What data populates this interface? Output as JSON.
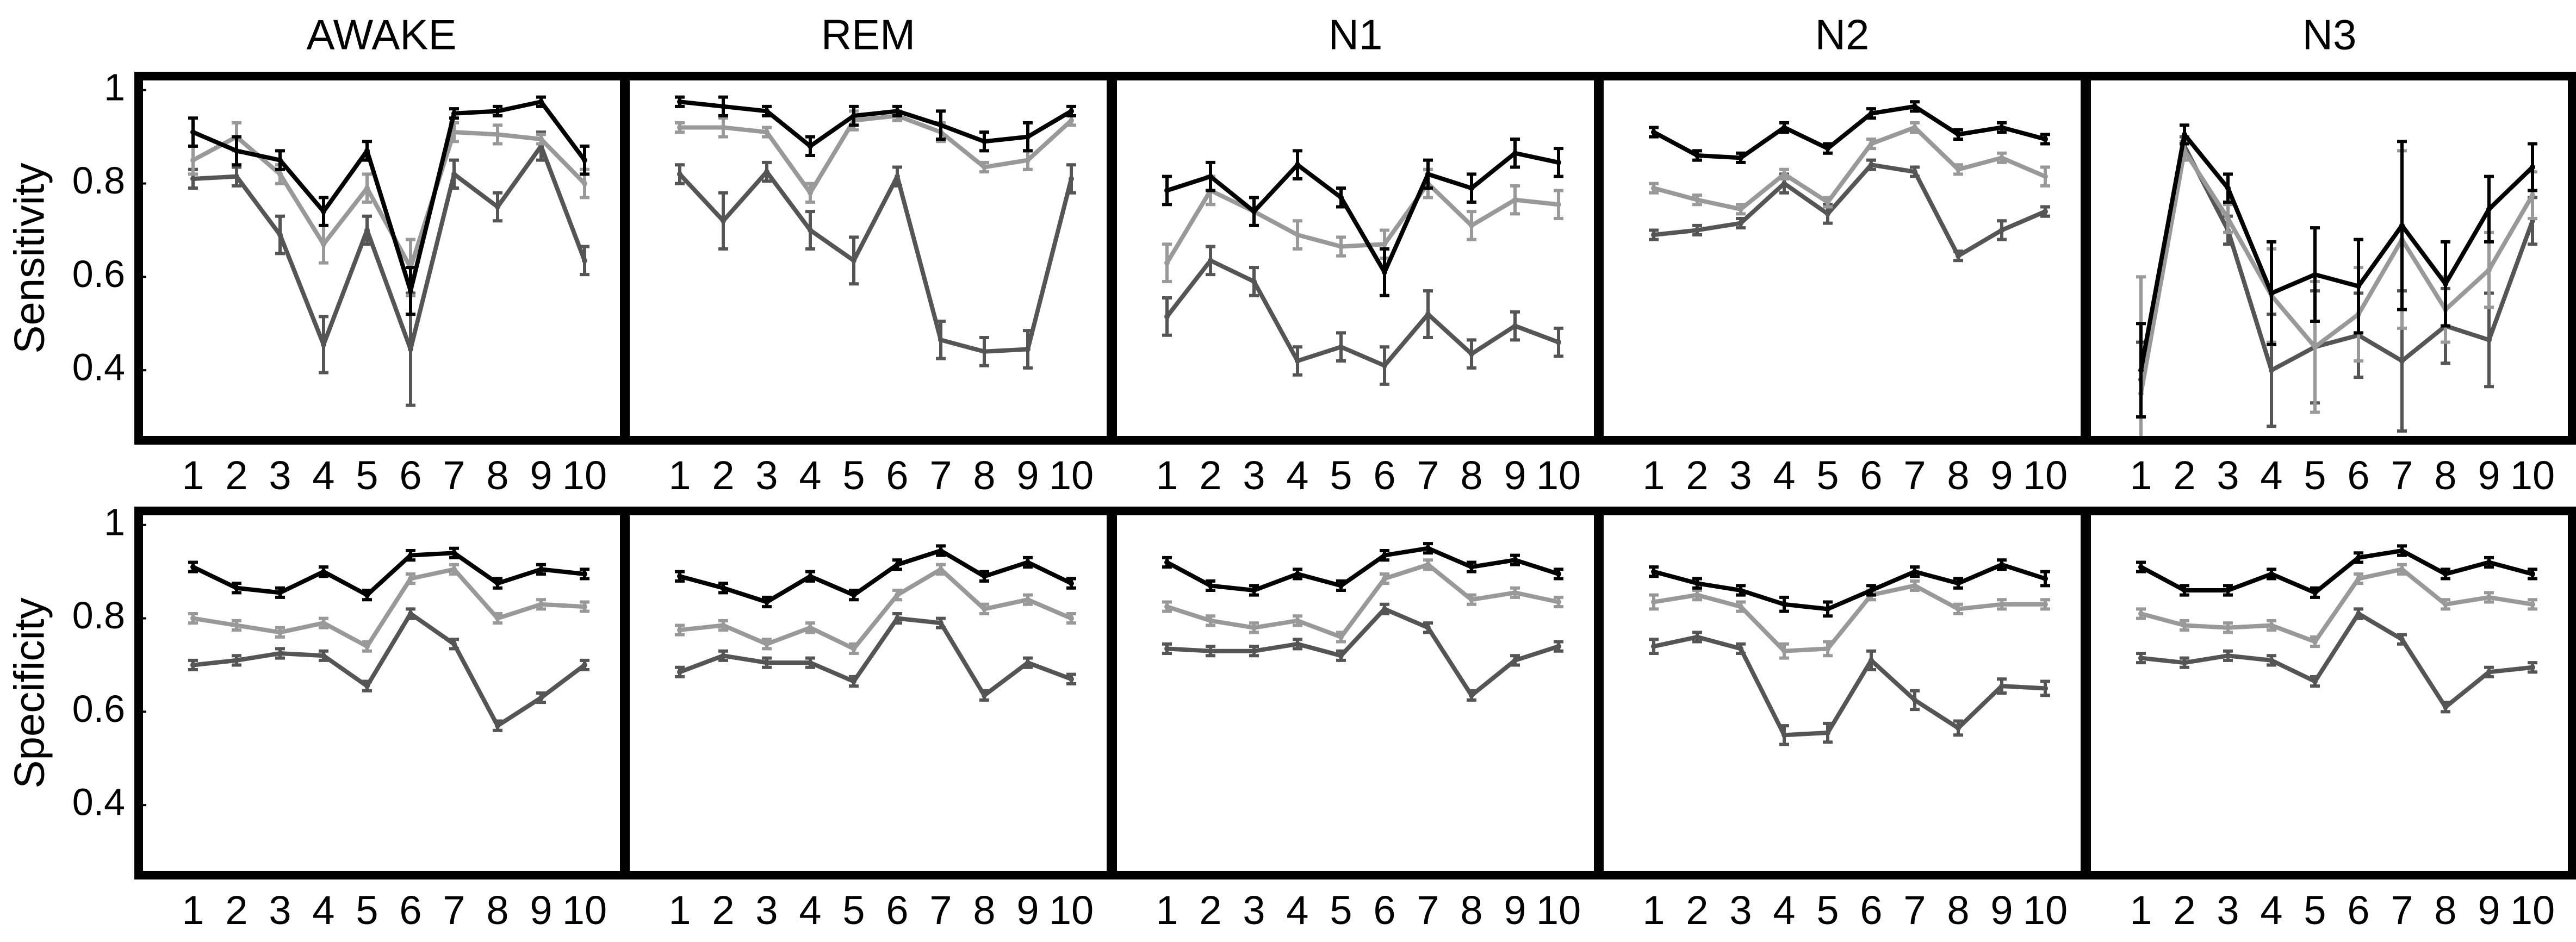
{
  "figure": {
    "columns": [
      "AWAKE",
      "REM",
      "N1",
      "N2",
      "N3"
    ],
    "row_labels": [
      "Sensitivity",
      "Specificity"
    ],
    "x_tick_labels": [
      "1",
      "2",
      "3",
      "4",
      "5",
      "6",
      "7",
      "8",
      "9",
      "10"
    ],
    "y_tick_labels": [
      "0.4",
      "0.6",
      "0.8",
      "1"
    ]
  },
  "chart_data": [
    {
      "type": "line",
      "metric": "Sensitivity",
      "stage": "AWAKE",
      "categories": [
        1,
        2,
        3,
        4,
        5,
        6,
        7,
        8,
        9,
        10
      ],
      "ylim": [
        0.25,
        1.03
      ],
      "grid": false,
      "colors": [
        "#000000",
        "#999999",
        "#555555"
      ],
      "series": [
        {
          "values": [
            0.91,
            0.87,
            0.85,
            0.74,
            0.87,
            0.57,
            0.95,
            0.955,
            0.975,
            0.85
          ],
          "errors": [
            0.03,
            0.03,
            0.02,
            0.03,
            0.02,
            0.05,
            0.01,
            0.01,
            0.01,
            0.03
          ]
        },
        {
          "values": [
            0.85,
            0.9,
            0.82,
            0.67,
            0.79,
            0.62,
            0.91,
            0.905,
            0.895,
            0.8
          ],
          "errors": [
            0.03,
            0.03,
            0.02,
            0.04,
            0.03,
            0.06,
            0.02,
            0.02,
            0.01,
            0.03
          ]
        },
        {
          "values": [
            0.81,
            0.815,
            0.69,
            0.455,
            0.7,
            0.445,
            0.82,
            0.75,
            0.88,
            0.635
          ],
          "errors": [
            0.02,
            0.02,
            0.04,
            0.06,
            0.03,
            0.12,
            0.03,
            0.03,
            0.03,
            0.03
          ]
        }
      ]
    },
    {
      "type": "line",
      "metric": "Sensitivity",
      "stage": "REM",
      "categories": [
        1,
        2,
        3,
        4,
        5,
        6,
        7,
        8,
        9,
        10
      ],
      "ylim": [
        0.25,
        1.03
      ],
      "grid": false,
      "colors": [
        "#000000",
        "#999999",
        "#555555"
      ],
      "series": [
        {
          "values": [
            0.975,
            0.965,
            0.955,
            0.88,
            0.945,
            0.955,
            0.925,
            0.89,
            0.9,
            0.955
          ],
          "errors": [
            0.01,
            0.02,
            0.01,
            0.02,
            0.02,
            0.01,
            0.03,
            0.02,
            0.03,
            0.01
          ]
        },
        {
          "values": [
            0.92,
            0.92,
            0.91,
            0.78,
            0.935,
            0.945,
            0.91,
            0.835,
            0.85,
            0.935
          ],
          "errors": [
            0.01,
            0.02,
            0.01,
            0.02,
            0.02,
            0.01,
            0.02,
            0.01,
            0.02,
            0.01
          ]
        },
        {
          "values": [
            0.82,
            0.72,
            0.825,
            0.7,
            0.635,
            0.815,
            0.465,
            0.44,
            0.445,
            0.81
          ],
          "errors": [
            0.02,
            0.06,
            0.02,
            0.04,
            0.05,
            0.02,
            0.04,
            0.03,
            0.04,
            0.03
          ]
        }
      ]
    },
    {
      "type": "line",
      "metric": "Sensitivity",
      "stage": "N1",
      "categories": [
        1,
        2,
        3,
        4,
        5,
        6,
        7,
        8,
        9,
        10
      ],
      "ylim": [
        0.25,
        1.03
      ],
      "grid": false,
      "colors": [
        "#000000",
        "#999999",
        "#555555"
      ],
      "series": [
        {
          "values": [
            0.785,
            0.815,
            0.74,
            0.84,
            0.77,
            0.61,
            0.82,
            0.79,
            0.865,
            0.845
          ],
          "errors": [
            0.03,
            0.03,
            0.03,
            0.03,
            0.02,
            0.05,
            0.03,
            0.03,
            0.03,
            0.03
          ]
        },
        {
          "values": [
            0.63,
            0.785,
            0.74,
            0.69,
            0.665,
            0.67,
            0.8,
            0.71,
            0.765,
            0.755
          ],
          "errors": [
            0.04,
            0.03,
            0.03,
            0.03,
            0.02,
            0.03,
            0.03,
            0.03,
            0.03,
            0.03
          ]
        },
        {
          "values": [
            0.515,
            0.635,
            0.59,
            0.42,
            0.45,
            0.41,
            0.52,
            0.435,
            0.495,
            0.46
          ],
          "errors": [
            0.04,
            0.03,
            0.03,
            0.03,
            0.03,
            0.04,
            0.05,
            0.03,
            0.03,
            0.03
          ]
        }
      ]
    },
    {
      "type": "line",
      "metric": "Sensitivity",
      "stage": "N2",
      "categories": [
        1,
        2,
        3,
        4,
        5,
        6,
        7,
        8,
        9,
        10
      ],
      "ylim": [
        0.25,
        1.03
      ],
      "grid": false,
      "colors": [
        "#000000",
        "#999999",
        "#555555"
      ],
      "series": [
        {
          "values": [
            0.91,
            0.86,
            0.855,
            0.92,
            0.875,
            0.95,
            0.965,
            0.905,
            0.92,
            0.895
          ],
          "errors": [
            0.01,
            0.01,
            0.01,
            0.01,
            0.01,
            0.01,
            0.01,
            0.01,
            0.01,
            0.01
          ]
        },
        {
          "values": [
            0.79,
            0.765,
            0.745,
            0.82,
            0.76,
            0.885,
            0.92,
            0.83,
            0.855,
            0.815
          ],
          "errors": [
            0.01,
            0.01,
            0.01,
            0.01,
            0.01,
            0.01,
            0.01,
            0.01,
            0.01,
            0.02
          ]
        },
        {
          "values": [
            0.69,
            0.7,
            0.715,
            0.8,
            0.735,
            0.84,
            0.825,
            0.645,
            0.7,
            0.74
          ],
          "errors": [
            0.01,
            0.01,
            0.01,
            0.02,
            0.02,
            0.01,
            0.01,
            0.01,
            0.02,
            0.01
          ]
        }
      ]
    },
    {
      "type": "line",
      "metric": "Sensitivity",
      "stage": "N3",
      "categories": [
        1,
        2,
        3,
        4,
        5,
        6,
        7,
        8,
        9,
        10
      ],
      "ylim": [
        0.25,
        1.03
      ],
      "grid": false,
      "colors": [
        "#000000",
        "#999999",
        "#555555"
      ],
      "series": [
        {
          "values": [
            0.4,
            0.905,
            0.79,
            0.565,
            0.605,
            0.58,
            0.71,
            0.585,
            0.745,
            0.835
          ],
          "errors": [
            0.1,
            0.02,
            0.03,
            0.11,
            0.1,
            0.1,
            0.18,
            0.09,
            0.07,
            0.05
          ]
        },
        {
          "values": [
            0.35,
            0.87,
            0.725,
            0.56,
            0.45,
            0.52,
            0.68,
            0.53,
            0.615,
            0.775
          ],
          "errors": [
            0.25,
            0.02,
            0.03,
            0.1,
            0.14,
            0.1,
            0.19,
            0.07,
            0.08,
            0.05
          ]
        },
        {
          "values": [
            0.38,
            0.88,
            0.7,
            0.4,
            0.45,
            0.475,
            0.42,
            0.495,
            0.465,
            0.72
          ],
          "errors": [
            0.08,
            0.02,
            0.03,
            0.12,
            0.12,
            0.09,
            0.15,
            0.08,
            0.1,
            0.05
          ]
        }
      ]
    },
    {
      "type": "line",
      "metric": "Specificity",
      "stage": "AWAKE",
      "categories": [
        1,
        2,
        3,
        4,
        5,
        6,
        7,
        8,
        9,
        10
      ],
      "ylim": [
        0.25,
        1.03
      ],
      "grid": false,
      "colors": [
        "#000000",
        "#999999",
        "#555555"
      ],
      "series": [
        {
          "values": [
            0.91,
            0.865,
            0.855,
            0.9,
            0.85,
            0.935,
            0.94,
            0.875,
            0.905,
            0.895
          ],
          "errors": [
            0.01,
            0.01,
            0.01,
            0.01,
            0.01,
            0.01,
            0.01,
            0.01,
            0.01,
            0.01
          ]
        },
        {
          "values": [
            0.8,
            0.785,
            0.77,
            0.79,
            0.74,
            0.885,
            0.905,
            0.8,
            0.83,
            0.825
          ],
          "errors": [
            0.01,
            0.01,
            0.01,
            0.01,
            0.01,
            0.01,
            0.01,
            0.01,
            0.01,
            0.01
          ]
        },
        {
          "values": [
            0.7,
            0.71,
            0.725,
            0.72,
            0.655,
            0.81,
            0.745,
            0.57,
            0.63,
            0.7
          ],
          "errors": [
            0.01,
            0.01,
            0.01,
            0.01,
            0.01,
            0.01,
            0.01,
            0.01,
            0.01,
            0.01
          ]
        }
      ]
    },
    {
      "type": "line",
      "metric": "Specificity",
      "stage": "REM",
      "categories": [
        1,
        2,
        3,
        4,
        5,
        6,
        7,
        8,
        9,
        10
      ],
      "ylim": [
        0.25,
        1.03
      ],
      "grid": false,
      "colors": [
        "#000000",
        "#999999",
        "#555555"
      ],
      "series": [
        {
          "values": [
            0.89,
            0.865,
            0.835,
            0.89,
            0.85,
            0.915,
            0.945,
            0.89,
            0.92,
            0.875
          ],
          "errors": [
            0.01,
            0.01,
            0.01,
            0.01,
            0.01,
            0.01,
            0.01,
            0.01,
            0.01,
            0.01
          ]
        },
        {
          "values": [
            0.775,
            0.785,
            0.745,
            0.78,
            0.735,
            0.85,
            0.905,
            0.82,
            0.84,
            0.8
          ],
          "errors": [
            0.01,
            0.01,
            0.01,
            0.01,
            0.01,
            0.01,
            0.01,
            0.01,
            0.01,
            0.01
          ]
        },
        {
          "values": [
            0.685,
            0.72,
            0.705,
            0.705,
            0.665,
            0.8,
            0.79,
            0.635,
            0.705,
            0.67
          ],
          "errors": [
            0.01,
            0.01,
            0.01,
            0.01,
            0.01,
            0.01,
            0.01,
            0.01,
            0.01,
            0.01
          ]
        }
      ]
    },
    {
      "type": "line",
      "metric": "Specificity",
      "stage": "N1",
      "categories": [
        1,
        2,
        3,
        4,
        5,
        6,
        7,
        8,
        9,
        10
      ],
      "ylim": [
        0.25,
        1.03
      ],
      "grid": false,
      "colors": [
        "#000000",
        "#999999",
        "#555555"
      ],
      "series": [
        {
          "values": [
            0.92,
            0.87,
            0.86,
            0.895,
            0.87,
            0.935,
            0.95,
            0.91,
            0.925,
            0.895
          ],
          "errors": [
            0.01,
            0.01,
            0.01,
            0.01,
            0.01,
            0.01,
            0.01,
            0.01,
            0.01,
            0.01
          ]
        },
        {
          "values": [
            0.825,
            0.795,
            0.78,
            0.795,
            0.76,
            0.885,
            0.915,
            0.84,
            0.855,
            0.835
          ],
          "errors": [
            0.01,
            0.01,
            0.01,
            0.01,
            0.01,
            0.01,
            0.01,
            0.01,
            0.01,
            0.01
          ]
        },
        {
          "values": [
            0.735,
            0.73,
            0.73,
            0.745,
            0.72,
            0.82,
            0.78,
            0.635,
            0.71,
            0.74
          ],
          "errors": [
            0.01,
            0.01,
            0.01,
            0.01,
            0.01,
            0.01,
            0.01,
            0.01,
            0.01,
            0.01
          ]
        }
      ]
    },
    {
      "type": "line",
      "metric": "Specificity",
      "stage": "N2",
      "categories": [
        1,
        2,
        3,
        4,
        5,
        6,
        7,
        8,
        9,
        10
      ],
      "ylim": [
        0.25,
        1.03
      ],
      "grid": false,
      "colors": [
        "#000000",
        "#999999",
        "#555555"
      ],
      "series": [
        {
          "values": [
            0.9,
            0.875,
            0.86,
            0.83,
            0.82,
            0.86,
            0.9,
            0.875,
            0.915,
            0.885
          ],
          "errors": [
            0.01,
            0.01,
            0.01,
            0.015,
            0.015,
            0.01,
            0.01,
            0.01,
            0.01,
            0.015
          ]
        },
        {
          "values": [
            0.835,
            0.85,
            0.825,
            0.73,
            0.735,
            0.85,
            0.87,
            0.82,
            0.83,
            0.83
          ],
          "errors": [
            0.015,
            0.01,
            0.01,
            0.015,
            0.015,
            0.01,
            0.01,
            0.01,
            0.01,
            0.01
          ]
        },
        {
          "values": [
            0.74,
            0.76,
            0.735,
            0.55,
            0.555,
            0.71,
            0.625,
            0.565,
            0.655,
            0.65
          ],
          "errors": [
            0.015,
            0.01,
            0.01,
            0.02,
            0.02,
            0.02,
            0.02,
            0.015,
            0.015,
            0.015
          ]
        }
      ]
    },
    {
      "type": "line",
      "metric": "Specificity",
      "stage": "N3",
      "categories": [
        1,
        2,
        3,
        4,
        5,
        6,
        7,
        8,
        9,
        10
      ],
      "ylim": [
        0.25,
        1.03
      ],
      "grid": false,
      "colors": [
        "#000000",
        "#999999",
        "#555555"
      ],
      "series": [
        {
          "values": [
            0.91,
            0.86,
            0.86,
            0.895,
            0.855,
            0.93,
            0.945,
            0.895,
            0.92,
            0.895
          ],
          "errors": [
            0.01,
            0.01,
            0.01,
            0.01,
            0.01,
            0.01,
            0.01,
            0.01,
            0.01,
            0.01
          ]
        },
        {
          "values": [
            0.81,
            0.785,
            0.78,
            0.785,
            0.75,
            0.885,
            0.905,
            0.83,
            0.845,
            0.83
          ],
          "errors": [
            0.01,
            0.01,
            0.01,
            0.01,
            0.01,
            0.01,
            0.01,
            0.01,
            0.01,
            0.01
          ]
        },
        {
          "values": [
            0.715,
            0.705,
            0.72,
            0.71,
            0.665,
            0.81,
            0.755,
            0.61,
            0.685,
            0.695
          ],
          "errors": [
            0.01,
            0.01,
            0.01,
            0.01,
            0.01,
            0.01,
            0.01,
            0.01,
            0.01,
            0.01
          ]
        }
      ]
    }
  ]
}
